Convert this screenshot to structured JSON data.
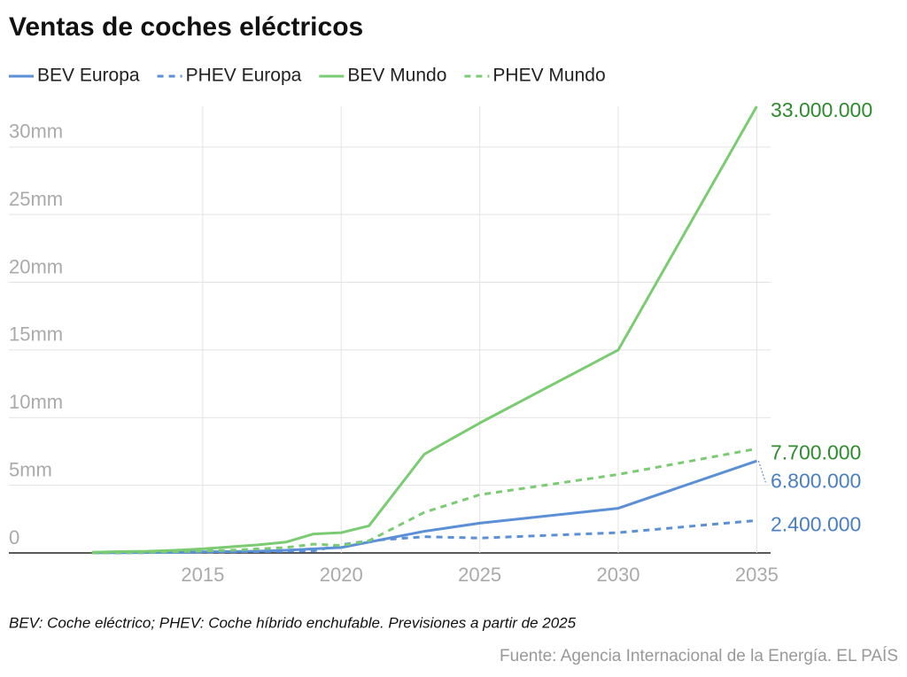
{
  "chart_data": {
    "type": "line",
    "title": "Ventas de coches eléctricos",
    "x": [
      2011,
      2012,
      2013,
      2014,
      2015,
      2016,
      2017,
      2018,
      2019,
      2020,
      2021,
      2023,
      2025,
      2030,
      2035
    ],
    "xlim": [
      2008,
      2035.5
    ],
    "xticks": [
      2015,
      2020,
      2025,
      2030,
      2035
    ],
    "ylim": [
      0,
      33
    ],
    "yticks": [
      0,
      {
        "value": 5,
        "label": "5mm"
      },
      {
        "value": 10,
        "label": "10mm"
      },
      {
        "value": 15,
        "label": "15mm"
      },
      {
        "value": 20,
        "label": "20mm"
      },
      {
        "value": 25,
        "label": "25mm"
      },
      {
        "value": 30,
        "label": "30mm"
      }
    ],
    "grid": true,
    "series": [
      {
        "name": "BEV Europa",
        "color": "#5b8fd6",
        "dashed": false,
        "label_color": "#4a7fc1",
        "values": [
          0.01,
          0.02,
          0.03,
          0.05,
          0.08,
          0.1,
          0.13,
          0.2,
          0.3,
          0.4,
          0.8,
          1.6,
          2.2,
          3.3,
          6.8
        ],
        "value_labels": [
          null,
          null,
          null,
          null,
          null,
          null,
          null,
          null,
          null,
          null,
          null,
          null,
          null,
          null,
          "6.800.000"
        ]
      },
      {
        "name": "PHEV Europa",
        "color": "#5b8fd6",
        "dashed": true,
        "label_color": "#4a7fc1",
        "values": [
          0.0,
          0.01,
          0.02,
          0.03,
          0.06,
          0.08,
          0.1,
          0.12,
          0.15,
          0.6,
          0.9,
          1.2,
          1.1,
          1.5,
          2.4
        ],
        "value_labels": [
          null,
          null,
          null,
          null,
          null,
          null,
          null,
          null,
          null,
          null,
          null,
          null,
          null,
          null,
          "2.400.000"
        ]
      },
      {
        "name": "BEV Mundo",
        "color": "#7acb72",
        "dashed": false,
        "label_color": "#2e8b2e",
        "values": [
          0.05,
          0.1,
          0.12,
          0.2,
          0.3,
          0.45,
          0.6,
          0.8,
          1.4,
          1.5,
          2.0,
          7.3,
          9.6,
          15,
          33
        ],
        "value_labels": [
          null,
          null,
          null,
          null,
          null,
          null,
          null,
          null,
          null,
          null,
          null,
          null,
          null,
          null,
          "33.000.000"
        ]
      },
      {
        "name": "PHEV Mundo",
        "color": "#7acb72",
        "dashed": true,
        "label_color": "#2e8b2e",
        "values": [
          0.01,
          0.03,
          0.05,
          0.08,
          0.15,
          0.2,
          0.3,
          0.4,
          0.65,
          0.55,
          0.9,
          3.0,
          4.3,
          5.8,
          7.7
        ],
        "value_labels": [
          null,
          null,
          null,
          null,
          null,
          null,
          null,
          null,
          null,
          null,
          null,
          null,
          null,
          null,
          "7.700.000"
        ]
      }
    ],
    "footnote": "BEV: Coche eléctrico; PHEV: Coche híbrido enchufable. Previsiones a partir de 2025",
    "source": "Fuente: Agencia Internacional de la Energía. EL PAÍS"
  }
}
